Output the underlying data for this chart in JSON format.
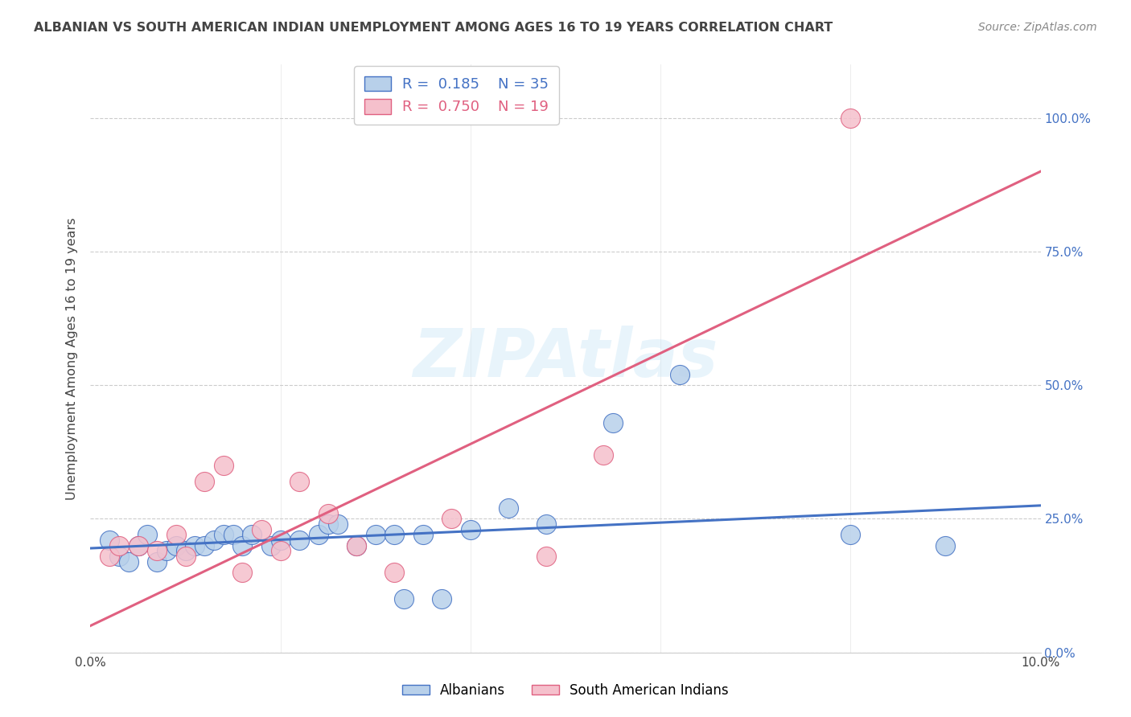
{
  "title": "ALBANIAN VS SOUTH AMERICAN INDIAN UNEMPLOYMENT AMONG AGES 16 TO 19 YEARS CORRELATION CHART",
  "source": "Source: ZipAtlas.com",
  "ylabel": "Unemployment Among Ages 16 to 19 years",
  "watermark": "ZIPAtlas",
  "blue_R": 0.185,
  "blue_N": 35,
  "pink_R": 0.75,
  "pink_N": 19,
  "blue_label": "Albanians",
  "pink_label": "South American Indians",
  "blue_face_color": "#b8d0ea",
  "blue_edge_color": "#4472c4",
  "pink_face_color": "#f5c0cc",
  "pink_edge_color": "#e06080",
  "blue_line_color": "#4472c4",
  "pink_line_color": "#e06080",
  "blue_scatter_x": [
    0.002,
    0.003,
    0.004,
    0.005,
    0.006,
    0.007,
    0.008,
    0.009,
    0.01,
    0.011,
    0.012,
    0.013,
    0.014,
    0.015,
    0.016,
    0.017,
    0.019,
    0.02,
    0.022,
    0.024,
    0.025,
    0.026,
    0.028,
    0.03,
    0.032,
    0.033,
    0.035,
    0.037,
    0.04,
    0.044,
    0.048,
    0.055,
    0.062,
    0.08,
    0.09
  ],
  "blue_scatter_y": [
    0.21,
    0.18,
    0.17,
    0.2,
    0.22,
    0.17,
    0.19,
    0.2,
    0.19,
    0.2,
    0.2,
    0.21,
    0.22,
    0.22,
    0.2,
    0.22,
    0.2,
    0.21,
    0.21,
    0.22,
    0.24,
    0.24,
    0.2,
    0.22,
    0.22,
    0.1,
    0.22,
    0.1,
    0.23,
    0.27,
    0.24,
    0.43,
    0.52,
    0.22,
    0.2
  ],
  "pink_scatter_x": [
    0.002,
    0.003,
    0.005,
    0.007,
    0.009,
    0.01,
    0.012,
    0.014,
    0.016,
    0.018,
    0.02,
    0.022,
    0.025,
    0.028,
    0.032,
    0.038,
    0.048,
    0.054,
    0.08
  ],
  "pink_scatter_y": [
    0.18,
    0.2,
    0.2,
    0.19,
    0.22,
    0.18,
    0.32,
    0.35,
    0.15,
    0.23,
    0.19,
    0.32,
    0.26,
    0.2,
    0.15,
    0.25,
    0.18,
    0.37,
    1.0
  ],
  "blue_line_x0": 0.0,
  "blue_line_x1": 0.1,
  "blue_line_y0": 0.195,
  "blue_line_y1": 0.275,
  "pink_line_x0": 0.0,
  "pink_line_x1": 0.1,
  "pink_line_y0": 0.05,
  "pink_line_y1": 0.9,
  "xlim": [
    0.0,
    0.1
  ],
  "ylim": [
    0.0,
    1.1
  ],
  "yticks": [
    0.0,
    0.25,
    0.5,
    0.75,
    1.0
  ],
  "ytick_labels_right": [
    "0.0%",
    "25.0%",
    "50.0%",
    "75.0%",
    "100.0%"
  ],
  "xticks": [
    0.0,
    0.02,
    0.04,
    0.06,
    0.08,
    0.1
  ],
  "xtick_labels": [
    "0.0%",
    "",
    "",
    "",
    "",
    "10.0%"
  ],
  "grid_color": "#cccccc",
  "background_color": "#ffffff",
  "text_color": "#444444",
  "right_tick_color": "#4472c4",
  "title_fontsize": 11.5,
  "source_color": "#888888"
}
